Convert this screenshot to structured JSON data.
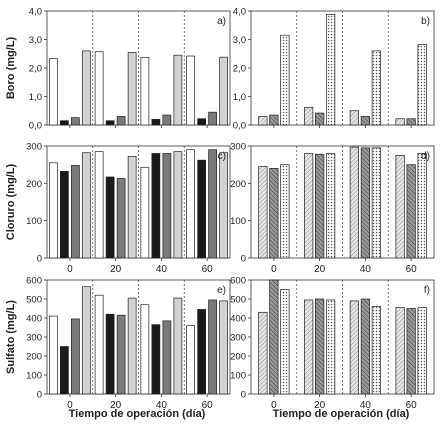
{
  "figure": {
    "x_axis_title": "Tiempo de operación (día)"
  },
  "chart_data": [
    {
      "type": "bar",
      "panel_label": "a)",
      "ylabel": "Boro (mg/L)",
      "ylim": [
        0,
        4
      ],
      "yticks": [
        "0,0",
        "1,0",
        "2,0",
        "3,0",
        "4,0"
      ],
      "tick_labels_x": [],
      "categories": [
        "0",
        "20",
        "40",
        "60"
      ],
      "series": [
        {
          "values": [
            2.33,
            2.57,
            2.37,
            2.42
          ],
          "fill": "white"
        },
        {
          "values": [
            0.15,
            0.15,
            0.2,
            0.22
          ],
          "fill": "black"
        },
        {
          "values": [
            0.26,
            0.3,
            0.35,
            0.45
          ],
          "fill": "gray"
        },
        {
          "values": [
            2.6,
            2.55,
            2.45,
            2.38
          ],
          "fill": "lightgray"
        }
      ]
    },
    {
      "type": "bar",
      "panel_label": "b)",
      "ylabel": "",
      "ylim": [
        0,
        4
      ],
      "yticks": [
        "0,0",
        "1,0",
        "2,0",
        "3,0",
        "4,0"
      ],
      "tick_labels_x": [],
      "categories": [
        "0",
        "20",
        "40",
        "60"
      ],
      "series": [
        {
          "values": [
            0.3,
            0.62,
            0.5,
            0.22
          ],
          "fill": "light-hatch"
        },
        {
          "values": [
            0.35,
            0.42,
            0.3,
            0.22
          ],
          "fill": "dark-hatch"
        },
        {
          "values": [
            3.15,
            3.88,
            2.6,
            2.83
          ],
          "fill": "dots"
        }
      ]
    },
    {
      "type": "bar",
      "panel_label": "c)",
      "ylabel": "Cloruro (mg/L)",
      "ylim": [
        0,
        300
      ],
      "yticks": [
        "0",
        "100",
        "200",
        "300"
      ],
      "tick_labels_x": [
        "0",
        "20",
        "40",
        "60"
      ],
      "categories": [
        "0",
        "20",
        "40",
        "60"
      ],
      "series": [
        {
          "values": [
            255,
            285,
            243,
            290
          ],
          "fill": "white"
        },
        {
          "values": [
            232,
            217,
            280,
            262
          ],
          "fill": "black"
        },
        {
          "values": [
            248,
            213,
            280,
            290
          ],
          "fill": "gray"
        },
        {
          "values": [
            282,
            272,
            285,
            282
          ],
          "fill": "lightgray"
        }
      ]
    },
    {
      "type": "bar",
      "panel_label": "d)",
      "ylabel": "",
      "ylim": [
        0,
        300
      ],
      "yticks": [
        "0",
        "100",
        "200",
        "300"
      ],
      "tick_labels_x": [
        "0",
        "20",
        "40",
        "60"
      ],
      "categories": [
        "0",
        "20",
        "40",
        "60"
      ],
      "series": [
        {
          "values": [
            245,
            280,
            297,
            275
          ],
          "fill": "light-hatch"
        },
        {
          "values": [
            240,
            278,
            295,
            250
          ],
          "fill": "dark-hatch"
        },
        {
          "values": [
            250,
            280,
            295,
            280
          ],
          "fill": "dots"
        }
      ]
    },
    {
      "type": "bar",
      "panel_label": "e)",
      "ylabel": "Sulfato (mg/L)",
      "ylim": [
        0,
        600
      ],
      "yticks": [
        "0",
        "100",
        "200",
        "300",
        "400",
        "500",
        "600"
      ],
      "tick_labels_x": [
        "0",
        "20",
        "40",
        "60"
      ],
      "categories": [
        "0",
        "20",
        "40",
        "60"
      ],
      "series": [
        {
          "values": [
            410,
            520,
            470,
            360
          ],
          "fill": "white"
        },
        {
          "values": [
            250,
            420,
            365,
            445
          ],
          "fill": "black"
        },
        {
          "values": [
            395,
            415,
            385,
            495
          ],
          "fill": "gray"
        },
        {
          "values": [
            565,
            505,
            505,
            490
          ],
          "fill": "lightgray"
        }
      ]
    },
    {
      "type": "bar",
      "panel_label": "f)",
      "ylabel": "",
      "ylim": [
        0,
        600
      ],
      "yticks": [
        "0",
        "100",
        "200",
        "300",
        "400",
        "500",
        "600"
      ],
      "tick_labels_x": [
        "0",
        "20",
        "40",
        "60"
      ],
      "categories": [
        "0",
        "20",
        "40",
        "60"
      ],
      "series": [
        {
          "values": [
            430,
            495,
            490,
            455
          ],
          "fill": "light-hatch"
        },
        {
          "values": [
            600,
            500,
            500,
            450
          ],
          "fill": "dark-hatch"
        },
        {
          "values": [
            550,
            495,
            460,
            455
          ],
          "fill": "dots"
        }
      ]
    }
  ]
}
